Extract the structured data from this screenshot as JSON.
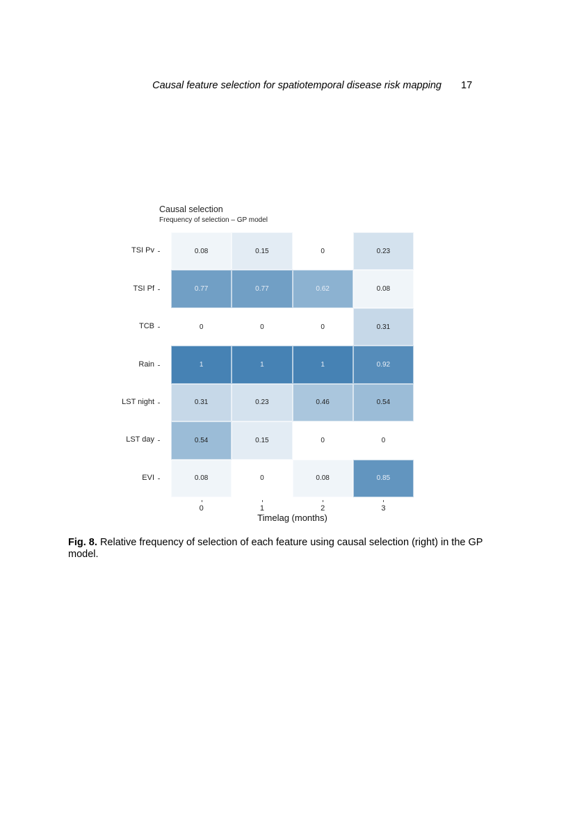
{
  "header": {
    "running_title": "Causal feature selection for spatiotemporal disease risk mapping",
    "page_number": "17"
  },
  "chart_data": {
    "type": "heatmap",
    "title": "Causal selection",
    "subtitle": "Frequency of selection – GP model",
    "xlabel": "Timelag (months)",
    "ylabel": "",
    "x": [
      "0",
      "1",
      "2",
      "3"
    ],
    "y": [
      "TSI Pv",
      "TSI Pf",
      "TCB",
      "Rain",
      "LST night",
      "LST day",
      "EVI"
    ],
    "values": [
      [
        0.08,
        0.15,
        0,
        0.23
      ],
      [
        0.77,
        0.77,
        0.62,
        0.08
      ],
      [
        0,
        0,
        0,
        0.31
      ],
      [
        1,
        1,
        1,
        0.92
      ],
      [
        0.31,
        0.23,
        0.46,
        0.54
      ],
      [
        0.54,
        0.15,
        0,
        0
      ],
      [
        0.08,
        0,
        0.08,
        0.85
      ]
    ],
    "value_labels": [
      [
        "0.08",
        "0.15",
        "0",
        "0.23"
      ],
      [
        "0.77",
        "0.77",
        "0.62",
        "0.08"
      ],
      [
        "0",
        "0",
        "0",
        "0.31"
      ],
      [
        "1",
        "1",
        "1",
        "0.92"
      ],
      [
        "0.31",
        "0.23",
        "0.46",
        "0.54"
      ],
      [
        "0.54",
        "0.15",
        "0",
        "0"
      ],
      [
        "0.08",
        "0",
        "0.08",
        "0.85"
      ]
    ],
    "colorscale": {
      "low": "#ffffff",
      "high": "#4682b4"
    },
    "value_range": [
      0,
      1
    ],
    "grid": false,
    "legend": "none"
  },
  "caption": {
    "label": "Fig. 8.",
    "text": "Relative frequency of selection of each feature using causal selection (right) in the GP model."
  }
}
